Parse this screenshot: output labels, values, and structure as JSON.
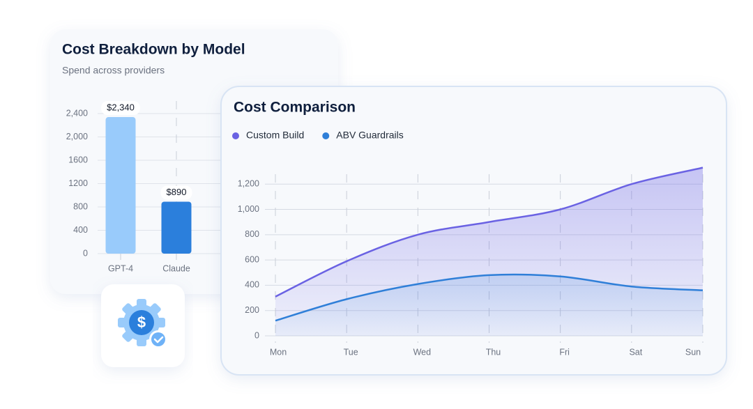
{
  "chart_data": [
    {
      "type": "bar",
      "title": "Cost Breakdown by Model",
      "subtitle": "Spend across providers",
      "categories": [
        "GPT-4",
        "Claude"
      ],
      "values": [
        2340,
        890
      ],
      "value_labels": [
        "$2,340",
        "$890"
      ],
      "colors": [
        "#99cbfb",
        "#2b7fdc"
      ],
      "ylim": [
        0,
        2400
      ],
      "yticks": [
        0,
        400,
        800,
        1200,
        1600,
        {
          "value": 2000,
          "label": "2,000"
        },
        {
          "value": 2400,
          "label": "2,400"
        }
      ],
      "grid": true
    },
    {
      "type": "area",
      "title": "Cost Comparison",
      "categories": [
        "Mon",
        "Tue",
        "Wed",
        "Thu",
        "Fri",
        "Sat",
        "Sun"
      ],
      "series": [
        {
          "name": "Custom Build",
          "color": "#6a62e3",
          "values": [
            310,
            590,
            800,
            900,
            1000,
            1200,
            1330
          ]
        },
        {
          "name": "ABV Guardrails",
          "color": "#2f7fd8",
          "values": [
            120,
            290,
            410,
            480,
            470,
            390,
            360
          ]
        }
      ],
      "ylim": [
        0,
        1350
      ],
      "yticks": [
        0,
        200,
        400,
        600,
        800,
        {
          "value": 1000,
          "label": "1,000"
        },
        {
          "value": 1200,
          "label": "1,200"
        }
      ],
      "grid": true
    }
  ]
}
